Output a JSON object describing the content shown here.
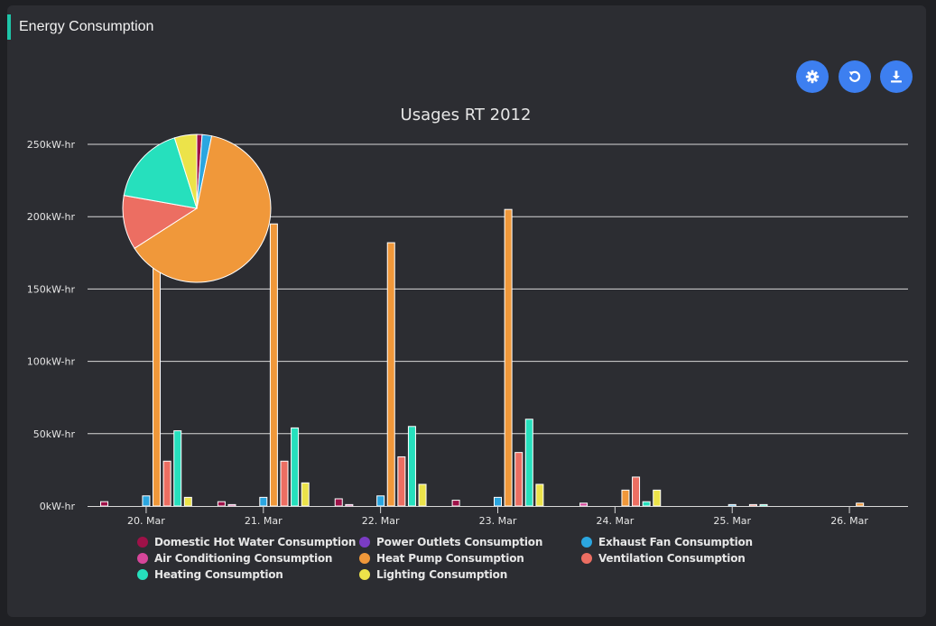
{
  "panel": {
    "title": "Energy Consumption"
  },
  "toolbar": [
    {
      "name": "settings-button",
      "icon": "gear-icon"
    },
    {
      "name": "reset-button",
      "icon": "refresh-icon"
    },
    {
      "name": "download-button",
      "icon": "download-icon"
    }
  ],
  "colors": {
    "accent": "#1ec5a9",
    "button": "#3d7ff0",
    "panel": "#2c2d32",
    "grid": "#d8d8d8",
    "text": "#e6e6e6"
  },
  "chart_data": {
    "type": "bar",
    "title": "Usages RT 2012",
    "y_unit": "kW-hr",
    "ylim": [
      0,
      250000
    ],
    "y_ticks": [
      0,
      50000,
      100000,
      150000,
      200000,
      250000
    ],
    "y_tick_labels": [
      "0kW-hr",
      "50kW-hr",
      "100kW-hr",
      "150kW-hr",
      "200kW-hr",
      "250kW-hr"
    ],
    "grid": true,
    "legend_position": "bottom",
    "categories": [
      "20. Mar",
      "21. Mar",
      "22. Mar",
      "23. Mar",
      "24. Mar",
      "25. Mar",
      "26. Mar"
    ],
    "series": [
      {
        "name": "Domestic Hot Water Consumption",
        "color": "#9e1148",
        "values": [
          3000,
          3000,
          5000,
          4000,
          0,
          0,
          0
        ]
      },
      {
        "name": "Air Conditioning Consumption",
        "color": "#d6469a",
        "values": [
          0,
          1000,
          1000,
          0,
          2000,
          0,
          0
        ]
      },
      {
        "name": "Heating Consumption",
        "color": "#26e0bd",
        "values": [
          0,
          0,
          0,
          0,
          0,
          0,
          0
        ]
      },
      {
        "name": "Power Outlets Consumption",
        "color": "#7b3cc4",
        "values": [
          0,
          0,
          0,
          0,
          0,
          0,
          0
        ]
      },
      {
        "name": "Exhaust Fan Consumption",
        "color": "#2ba6e0",
        "values": [
          7000,
          6000,
          7000,
          6000,
          0,
          1000,
          0
        ]
      },
      {
        "name": "Heat Pump Consumption",
        "color": "#f0983a",
        "values": [
          218000,
          195000,
          182000,
          205000,
          11000,
          0,
          2000
        ]
      },
      {
        "name": "Ventilation Consumption",
        "color": "#ec6e62",
        "values": [
          31000,
          31000,
          34000,
          37000,
          20000,
          1000,
          0
        ]
      },
      {
        "name": "Heating Consumption",
        "color": "#26e0bd",
        "values": [
          52000,
          54000,
          55000,
          60000,
          3000,
          1000,
          0
        ]
      },
      {
        "name": "Lighting Consumption",
        "color": "#ece34a",
        "values": [
          6000,
          16000,
          15000,
          15000,
          11000,
          0,
          0
        ]
      }
    ],
    "legend": [
      {
        "name": "Domestic Hot Water Consumption",
        "color": "#9e1148"
      },
      {
        "name": "Power Outlets Consumption",
        "color": "#7b3cc4"
      },
      {
        "name": "Exhaust Fan Consumption",
        "color": "#2ba6e0"
      },
      {
        "name": "Air Conditioning Consumption",
        "color": "#d6469a"
      },
      {
        "name": "Heat Pump Consumption",
        "color": "#f0983a"
      },
      {
        "name": "Ventilation Consumption",
        "color": "#ec6e62"
      },
      {
        "name": "Heating Consumption",
        "color": "#26e0bd"
      },
      {
        "name": "Lighting Consumption",
        "color": "#ece34a"
      }
    ],
    "pie": {
      "slices": [
        {
          "name": "Domestic Hot Water Consumption",
          "color": "#9e1148",
          "value": 15000
        },
        {
          "name": "Exhaust Fan Consumption",
          "color": "#2ba6e0",
          "value": 27000
        },
        {
          "name": "Heat Pump Consumption",
          "color": "#f0983a",
          "value": 813000
        },
        {
          "name": "Ventilation Consumption",
          "color": "#ec6e62",
          "value": 154000
        },
        {
          "name": "Heating Consumption",
          "color": "#26e0bd",
          "value": 225000
        },
        {
          "name": "Lighting Consumption",
          "color": "#ece34a",
          "value": 63000
        }
      ]
    }
  }
}
